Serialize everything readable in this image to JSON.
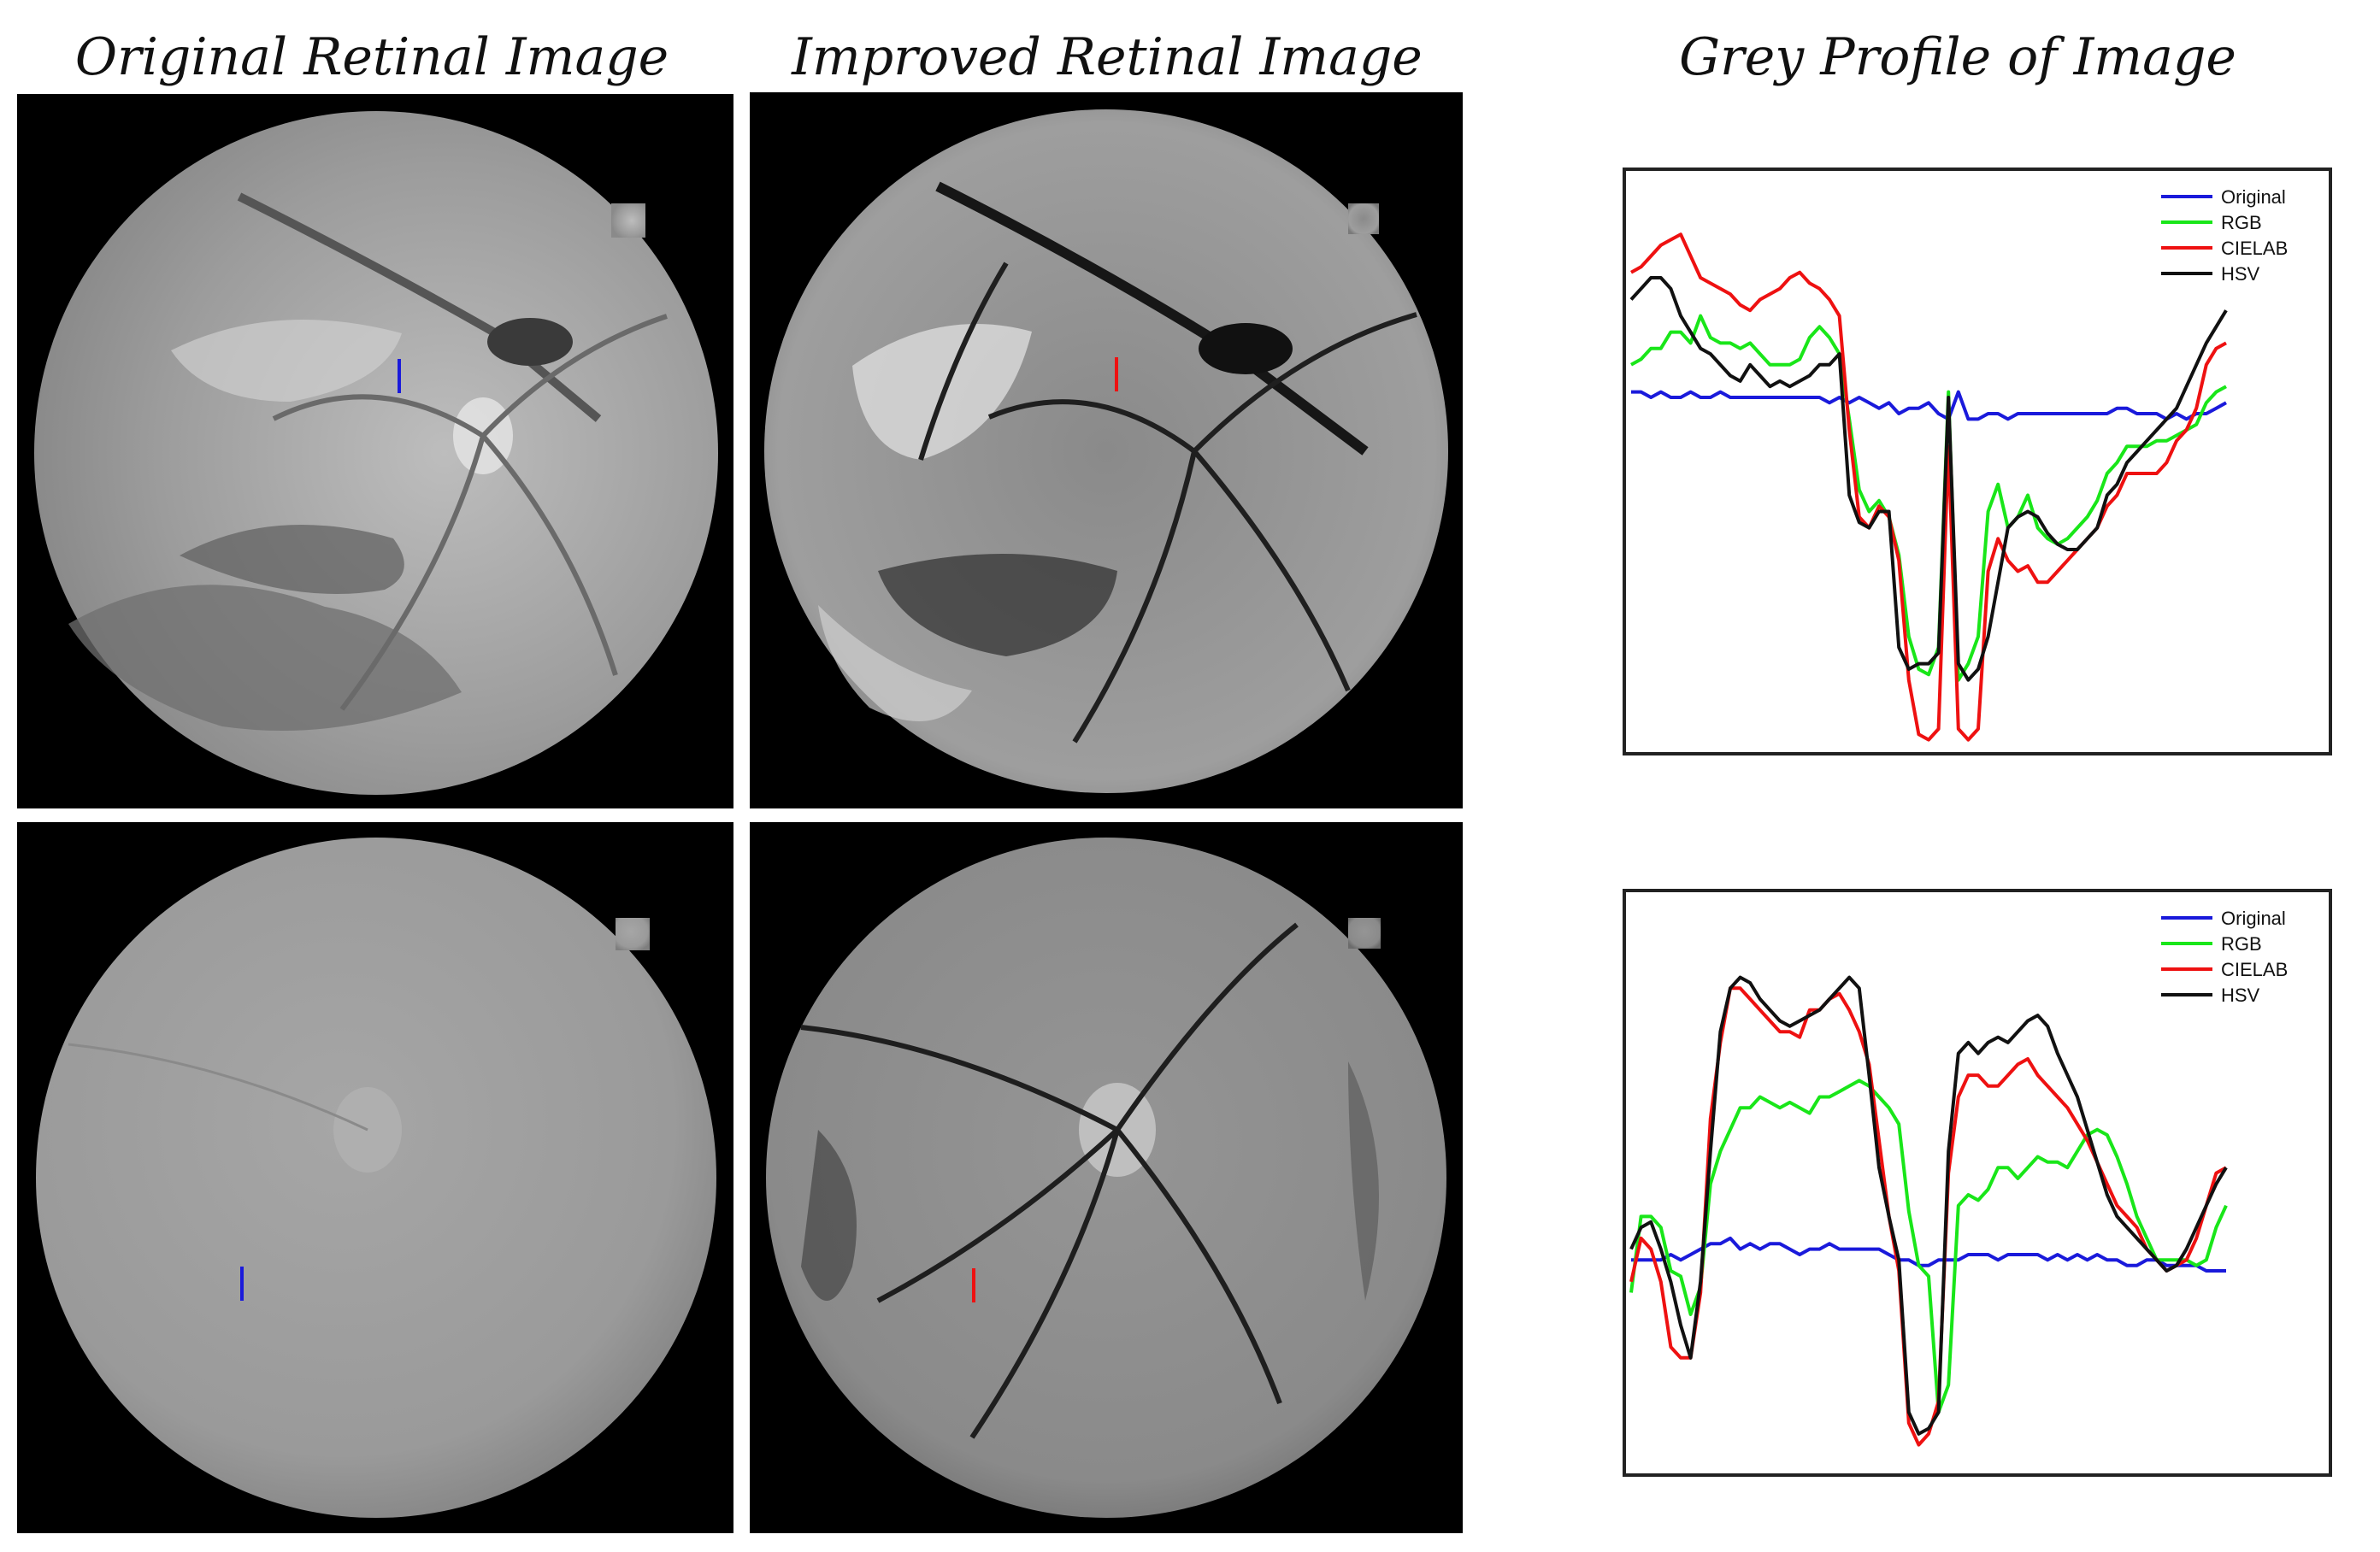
{
  "titles": {
    "original": "Original Retinal Image",
    "improved": "Improved Retinal Image",
    "profile": "Grey Profile of Image"
  },
  "colors": {
    "Original": "#1a1adb",
    "RGB": "#19e619",
    "CIELAB": "#ee1111",
    "HSV": "#111111",
    "marker_original": "#1a1adb",
    "marker_improved": "#ee1111"
  },
  "chart_data": [
    {
      "type": "line",
      "title": "",
      "xlabel": "",
      "ylabel": "",
      "xlim": [
        0,
        60
      ],
      "ylim": [
        0,
        100
      ],
      "grid": false,
      "ticks": false,
      "legend_position": "top-right",
      "x": [
        0,
        1,
        2,
        3,
        4,
        5,
        6,
        7,
        8,
        9,
        10,
        11,
        12,
        13,
        14,
        15,
        16,
        17,
        18,
        19,
        20,
        21,
        22,
        23,
        24,
        25,
        26,
        27,
        28,
        29,
        30,
        31,
        32,
        33,
        34,
        35,
        36,
        37,
        38,
        39,
        40,
        41,
        42,
        43,
        44,
        45,
        46,
        47,
        48,
        49,
        50,
        51,
        52,
        53,
        54,
        55,
        56,
        57,
        58,
        59,
        60
      ],
      "series": [
        {
          "name": "Original",
          "values": [
            65,
            65,
            64,
            65,
            64,
            64,
            65,
            64,
            64,
            65,
            64,
            64,
            64,
            64,
            64,
            64,
            64,
            64,
            64,
            64,
            63,
            64,
            63,
            64,
            63,
            62,
            63,
            61,
            62,
            62,
            63,
            61,
            60,
            65,
            60,
            60,
            61,
            61,
            60,
            61,
            61,
            61,
            61,
            61,
            61,
            61,
            61,
            61,
            61,
            62,
            62,
            61,
            61,
            61,
            60,
            61,
            60,
            61,
            61,
            62,
            63
          ]
        },
        {
          "name": "RGB",
          "values": [
            70,
            71,
            73,
            73,
            76,
            76,
            74,
            79,
            75,
            74,
            74,
            73,
            74,
            72,
            70,
            70,
            70,
            71,
            75,
            77,
            75,
            72,
            60,
            47,
            43,
            45,
            42,
            35,
            20,
            14,
            13,
            18,
            65,
            12,
            15,
            20,
            43,
            48,
            40,
            42,
            46,
            40,
            38,
            37,
            38,
            40,
            42,
            45,
            50,
            52,
            55,
            55,
            55,
            56,
            56,
            57,
            58,
            59,
            63,
            65,
            66
          ]
        },
        {
          "name": "CIELAB",
          "values": [
            87,
            88,
            90,
            92,
            93,
            94,
            90,
            86,
            85,
            84,
            83,
            81,
            80,
            82,
            83,
            84,
            86,
            87,
            85,
            84,
            82,
            79,
            58,
            42,
            40,
            44,
            42,
            34,
            12,
            2,
            1,
            3,
            55,
            3,
            1,
            3,
            32,
            38,
            34,
            32,
            33,
            30,
            30,
            32,
            34,
            36,
            38,
            40,
            44,
            46,
            50,
            50,
            50,
            50,
            52,
            56,
            58,
            62,
            70,
            73,
            74
          ]
        },
        {
          "name": "HSV",
          "values": [
            82,
            84,
            86,
            86,
            84,
            79,
            76,
            73,
            72,
            70,
            68,
            67,
            70,
            68,
            66,
            67,
            66,
            67,
            68,
            70,
            70,
            72,
            46,
            41,
            40,
            43,
            43,
            18,
            14,
            15,
            15,
            17,
            64,
            15,
            12,
            14,
            20,
            30,
            40,
            42,
            43,
            42,
            39,
            37,
            36,
            36,
            38,
            40,
            46,
            48,
            52,
            54,
            56,
            58,
            60,
            62,
            66,
            70,
            74,
            77,
            80
          ]
        }
      ]
    },
    {
      "type": "line",
      "title": "",
      "xlabel": "",
      "ylabel": "",
      "xlim": [
        0,
        60
      ],
      "ylim": [
        0,
        100
      ],
      "grid": false,
      "ticks": false,
      "legend_position": "top-right",
      "x": [
        0,
        1,
        2,
        3,
        4,
        5,
        6,
        7,
        8,
        9,
        10,
        11,
        12,
        13,
        14,
        15,
        16,
        17,
        18,
        19,
        20,
        21,
        22,
        23,
        24,
        25,
        26,
        27,
        28,
        29,
        30,
        31,
        32,
        33,
        34,
        35,
        36,
        37,
        38,
        39,
        40,
        41,
        42,
        43,
        44,
        45,
        46,
        47,
        48,
        49,
        50,
        51,
        52,
        53,
        54,
        55,
        56,
        57,
        58,
        59,
        60
      ],
      "series": [
        {
          "name": "Original",
          "values": [
            38,
            38,
            38,
            38,
            39,
            38,
            39,
            40,
            41,
            41,
            42,
            40,
            41,
            40,
            41,
            41,
            40,
            39,
            40,
            40,
            41,
            40,
            40,
            40,
            40,
            40,
            39,
            38,
            38,
            37,
            37,
            38,
            38,
            38,
            39,
            39,
            39,
            38,
            39,
            39,
            39,
            39,
            38,
            39,
            38,
            39,
            38,
            39,
            38,
            38,
            37,
            37,
            38,
            38,
            37,
            37,
            37,
            37,
            36,
            36,
            36
          ]
        },
        {
          "name": "RGB",
          "values": [
            32,
            46,
            46,
            44,
            36,
            35,
            28,
            33,
            52,
            58,
            62,
            66,
            66,
            68,
            67,
            66,
            67,
            66,
            65,
            68,
            68,
            69,
            70,
            71,
            70,
            68,
            66,
            63,
            47,
            37,
            35,
            10,
            15,
            48,
            50,
            49,
            51,
            55,
            55,
            53,
            55,
            57,
            56,
            56,
            55,
            58,
            61,
            62,
            61,
            57,
            52,
            46,
            42,
            38,
            38,
            38,
            38,
            37,
            38,
            44,
            48
          ]
        },
        {
          "name": "CIELAB",
          "values": [
            34,
            42,
            40,
            34,
            22,
            20,
            20,
            32,
            64,
            78,
            88,
            88,
            86,
            84,
            82,
            80,
            80,
            79,
            84,
            84,
            86,
            87,
            84,
            80,
            74,
            60,
            46,
            36,
            8,
            4,
            6,
            12,
            54,
            68,
            72,
            72,
            70,
            70,
            72,
            74,
            75,
            72,
            70,
            68,
            66,
            63,
            60,
            56,
            52,
            48,
            46,
            44,
            40,
            38,
            36,
            37,
            38,
            42,
            48,
            54,
            55
          ]
        },
        {
          "name": "HSV",
          "values": [
            40,
            44,
            45,
            40,
            34,
            26,
            20,
            34,
            58,
            80,
            88,
            90,
            89,
            86,
            84,
            82,
            81,
            82,
            83,
            84,
            86,
            88,
            90,
            88,
            72,
            55,
            46,
            38,
            10,
            6,
            7,
            10,
            58,
            76,
            78,
            76,
            78,
            79,
            78,
            80,
            82,
            83,
            81,
            76,
            72,
            68,
            62,
            56,
            50,
            46,
            44,
            42,
            40,
            38,
            36,
            37,
            40,
            44,
            48,
            52,
            55
          ]
        }
      ]
    }
  ]
}
